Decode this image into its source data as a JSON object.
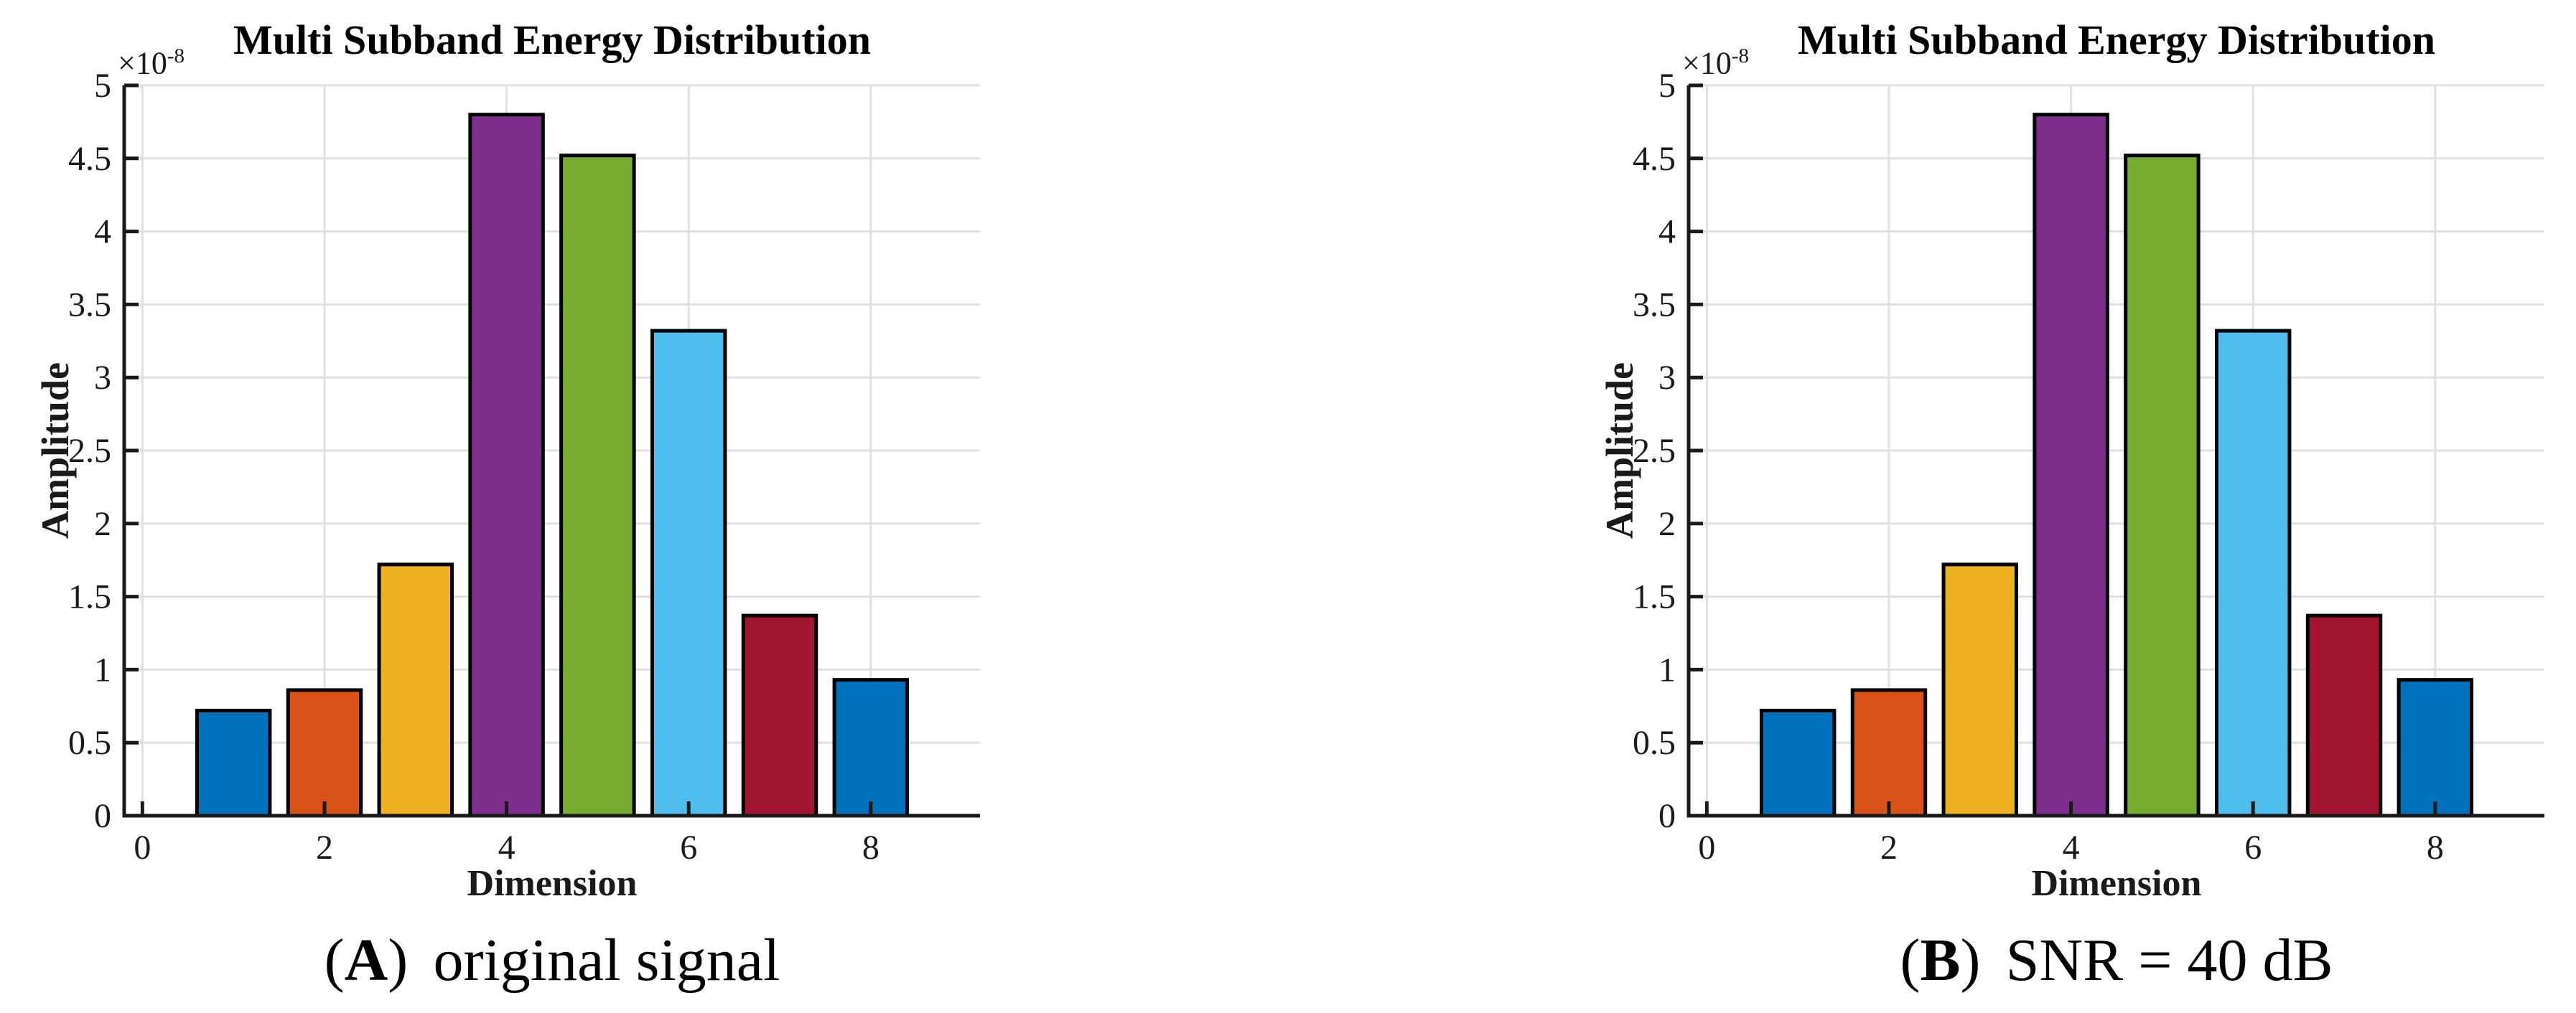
{
  "figure": {
    "background": "#ffffff",
    "text_color": "#1a1a1a"
  },
  "chart_data": [
    {
      "type": "bar",
      "title": "Multi Subband Energy Distribution",
      "y_scale": {
        "base": "×10",
        "exponent": "-8"
      },
      "xlabel": "Dimension",
      "ylabel": "Amplitude",
      "caption": {
        "open": "(",
        "tag": "A",
        "close": ")",
        "text": "original signal"
      },
      "categories": [
        1,
        2,
        3,
        4,
        5,
        6,
        7,
        8
      ],
      "values": [
        0.72,
        0.86,
        1.72,
        4.8,
        4.52,
        3.32,
        1.37,
        0.93
      ],
      "bar_colors": [
        "#0072BD",
        "#D95319",
        "#EDB120",
        "#7E2F8E",
        "#77AC30",
        "#4DBEEE",
        "#A2142F",
        "#0072BD"
      ],
      "bar_width": 0.8,
      "xlim": [
        -0.2,
        9.2
      ],
      "ylim": [
        0,
        5
      ],
      "xticks": [
        0,
        2,
        4,
        6,
        8
      ],
      "yticks": [
        0,
        0.5,
        1,
        1.5,
        2,
        2.5,
        3,
        3.5,
        4,
        4.5,
        5
      ],
      "grid": true,
      "colors": {
        "axis": "#1a1a1a",
        "grid": "#e0e0e0",
        "bar_edge": "#000000"
      }
    },
    {
      "type": "bar",
      "title": "Multi Subband Energy Distribution",
      "y_scale": {
        "base": "×10",
        "exponent": "-8"
      },
      "xlabel": "Dimension",
      "ylabel": "Amplitude",
      "caption": {
        "open": "(",
        "tag": "B",
        "close": ")",
        "text": "SNR = 40 dB"
      },
      "categories": [
        1,
        2,
        3,
        4,
        5,
        6,
        7,
        8
      ],
      "values": [
        0.72,
        0.86,
        1.72,
        4.8,
        4.52,
        3.32,
        1.37,
        0.93
      ],
      "bar_colors": [
        "#0072BD",
        "#D95319",
        "#EDB120",
        "#7E2F8E",
        "#77AC30",
        "#4DBEEE",
        "#A2142F",
        "#0072BD"
      ],
      "bar_width": 0.8,
      "xlim": [
        -0.2,
        9.2
      ],
      "ylim": [
        0,
        5
      ],
      "xticks": [
        0,
        2,
        4,
        6,
        8
      ],
      "yticks": [
        0,
        0.5,
        1,
        1.5,
        2,
        2.5,
        3,
        3.5,
        4,
        4.5,
        5
      ],
      "grid": true,
      "colors": {
        "axis": "#1a1a1a",
        "grid": "#e0e0e0",
        "bar_edge": "#000000"
      }
    }
  ]
}
